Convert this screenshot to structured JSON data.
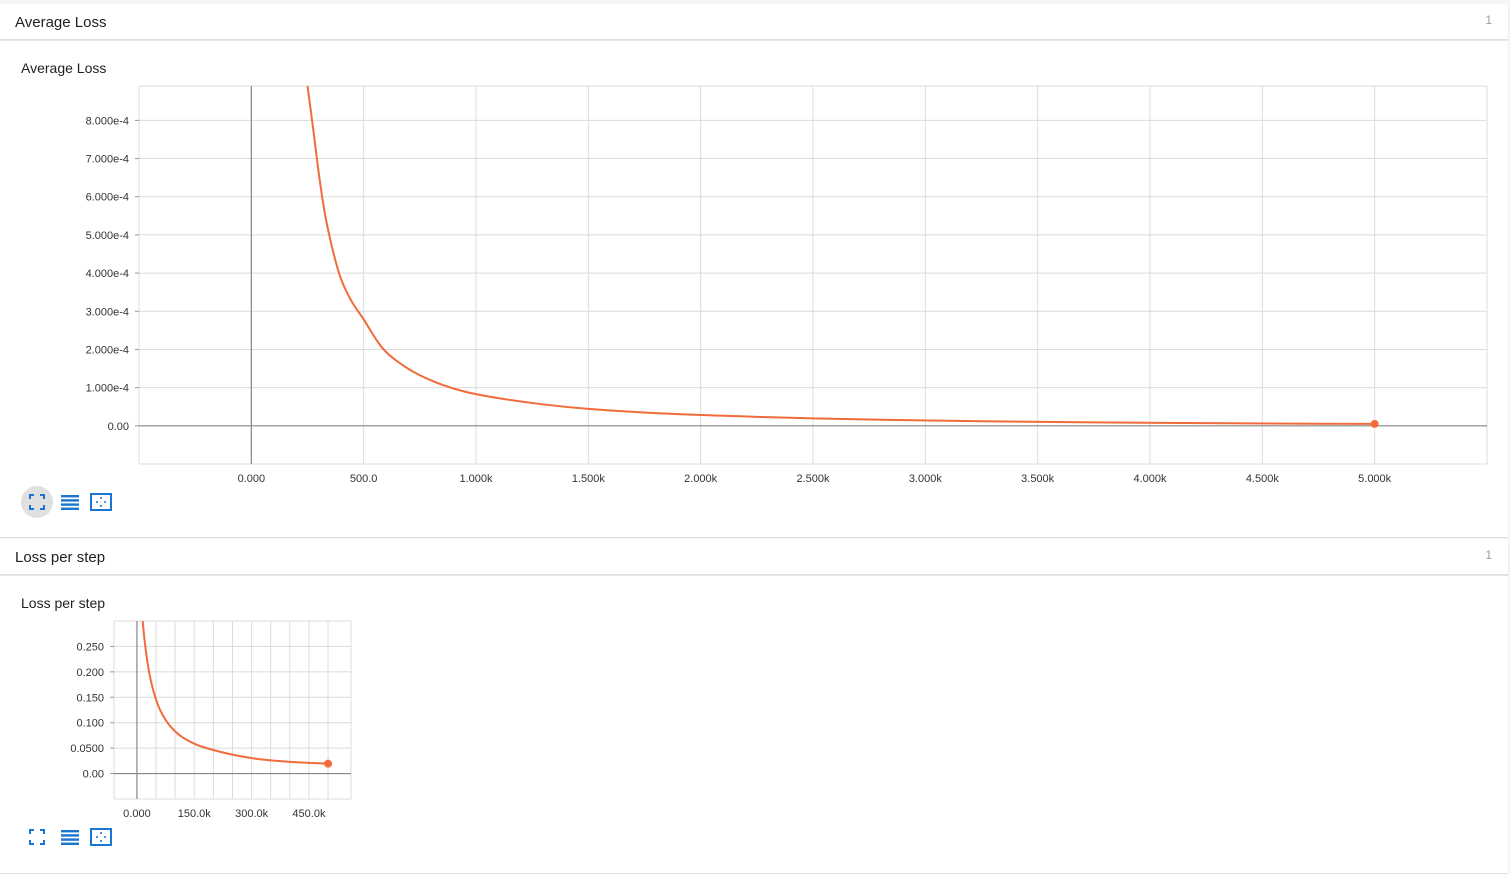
{
  "sections": [
    {
      "title": "Average Loss",
      "count": "1",
      "card_title": "Average Loss"
    },
    {
      "title": "Loss per step",
      "count": "1",
      "card_title": "Loss per step"
    }
  ],
  "toolbar": {
    "icons": [
      "fullscreen-icon",
      "list-icon",
      "fit-to-data-icon"
    ]
  },
  "colors": {
    "series": "#f26b3a",
    "icon": "#1976d2"
  },
  "chart_data": [
    {
      "type": "line",
      "title": "Average Loss",
      "xlabel": "",
      "ylabel": "",
      "xlim": [
        -500,
        5500
      ],
      "ylim": [
        -0.0001,
        0.00089
      ],
      "x_ticks": [
        0,
        500,
        1000,
        1500,
        2000,
        2500,
        3000,
        3500,
        4000,
        4500,
        5000
      ],
      "x_tick_labels": [
        "0.000",
        "500.0",
        "1.000k",
        "1.500k",
        "2.000k",
        "2.500k",
        "3.000k",
        "3.500k",
        "4.000k",
        "4.500k",
        "5.000k"
      ],
      "y_ticks": [
        0,
        0.0001,
        0.0002,
        0.0003,
        0.0004,
        0.0005,
        0.0006,
        0.0007,
        0.0008
      ],
      "y_tick_labels": [
        "0.00",
        "1.000e-4",
        "2.000e-4",
        "3.000e-4",
        "4.000e-4",
        "5.000e-4",
        "6.000e-4",
        "7.000e-4",
        "8.000e-4"
      ],
      "grid": true,
      "series": [
        {
          "x": [
            250,
            275,
            300,
            325,
            350,
            375,
            400,
            450,
            500,
            550,
            600,
            700,
            800,
            900,
            1000,
            1200,
            1400,
            1600,
            1800,
            2000,
            2500,
            3000,
            3500,
            4000,
            4500,
            5000
          ],
          "y": [
            0.00089,
            0.00078,
            0.00066,
            0.00056,
            0.00049,
            0.00043,
            0.00038,
            0.00032,
            0.00028,
            0.00023,
            0.00019,
            0.000147,
            0.000118,
            9.7e-05,
            8.2e-05,
            6.3e-05,
            4.9e-05,
            4e-05,
            3.3e-05,
            2.8e-05,
            1.9e-05,
            1.4e-05,
            1e-05,
            8e-06,
            6e-06,
            5e-06
          ]
        }
      ]
    },
    {
      "type": "line",
      "title": "Loss per step",
      "xlabel": "",
      "ylabel": "",
      "xlim": [
        -60000,
        560000
      ],
      "ylim": [
        -0.05,
        0.3
      ],
      "x_ticks": [
        0,
        150000,
        300000,
        450000
      ],
      "x_tick_labels": [
        "0.000",
        "150.0k",
        "300.0k",
        "450.0k"
      ],
      "x_grid": [
        0,
        50000,
        100000,
        150000,
        200000,
        250000,
        300000,
        350000,
        400000,
        450000,
        500000
      ],
      "y_ticks": [
        0,
        0.05,
        0.1,
        0.15,
        0.2,
        0.25
      ],
      "y_tick_labels": [
        "0.00",
        "0.0500",
        "0.100",
        "0.150",
        "0.200",
        "0.250"
      ],
      "grid": true,
      "series": [
        {
          "x": [
            15000,
            20000,
            30000,
            40000,
            50000,
            60000,
            75000,
            90000,
            110000,
            130000,
            160000,
            200000,
            250000,
            300000,
            350000,
            400000,
            450000,
            500000
          ],
          "y": [
            0.3,
            0.26,
            0.205,
            0.17,
            0.145,
            0.125,
            0.105,
            0.09,
            0.076,
            0.066,
            0.055,
            0.046,
            0.037,
            0.03,
            0.026,
            0.023,
            0.021,
            0.0195
          ]
        }
      ]
    }
  ]
}
